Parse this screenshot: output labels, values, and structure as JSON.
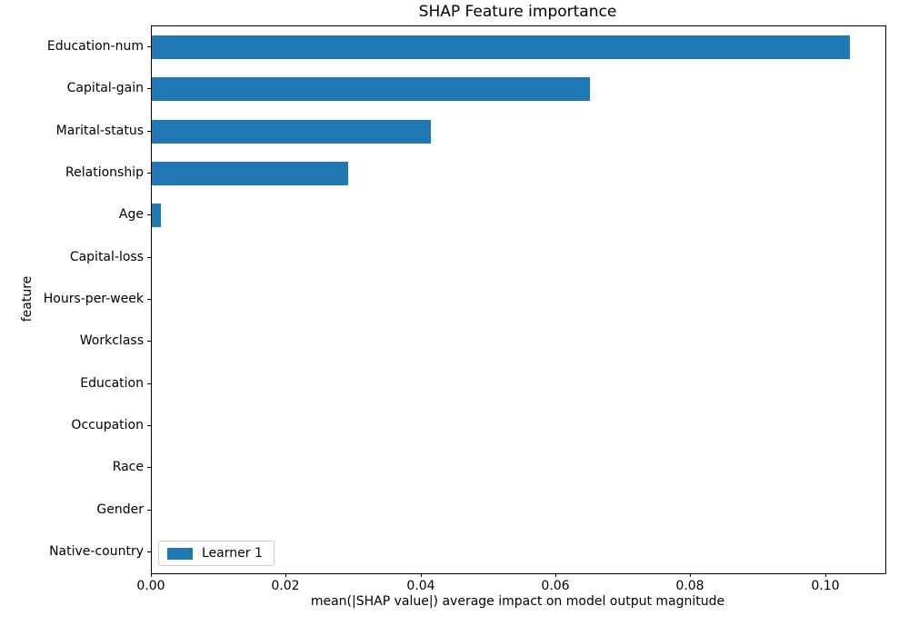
{
  "chart_data": {
    "type": "bar",
    "orientation": "horizontal",
    "title": "SHAP Feature importance",
    "xlabel": "mean(|SHAP value|) average impact on model output magnitude",
    "ylabel": "feature",
    "categories": [
      "Education-num",
      "Capital-gain",
      "Marital-status",
      "Relationship",
      "Age",
      "Capital-loss",
      "Hours-per-week",
      "Workclass",
      "Education",
      "Occupation",
      "Race",
      "Gender",
      "Native-country"
    ],
    "series": [
      {
        "name": "Learner 1",
        "color": "#1f77b4",
        "values": [
          0.1035,
          0.065,
          0.0414,
          0.0291,
          0.0013,
          0.0,
          0.0,
          0.0,
          0.0,
          0.0,
          0.0,
          0.0,
          0.0
        ]
      }
    ],
    "xlim": [
      0,
      0.1088
    ],
    "xticks": {
      "values": [
        0,
        0.02,
        0.04,
        0.06,
        0.08,
        0.1
      ],
      "labels": [
        "0.00",
        "0.02",
        "0.04",
        "0.06",
        "0.08",
        "0.10"
      ]
    },
    "grid": false,
    "legend_position": "lower left",
    "spine_color": "#000000",
    "text_color": "#000000"
  }
}
